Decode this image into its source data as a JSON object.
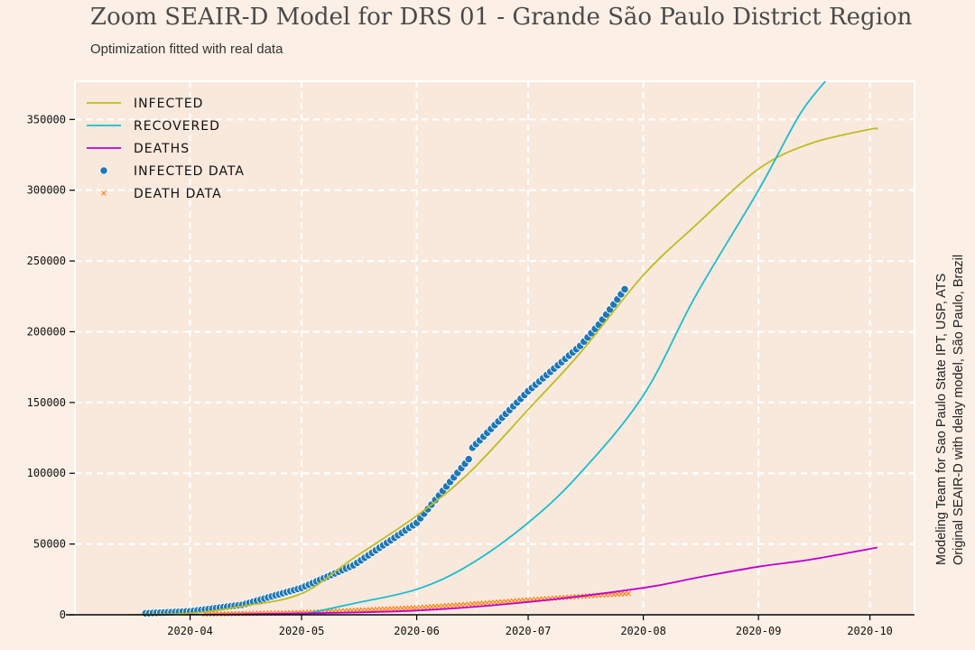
{
  "page": {
    "title": "Zoom SEAIR-D Model for DRS 01 - Grande São Paulo District Region",
    "subtitle": "Optimization fitted with real data"
  },
  "credits": [
    "Modeling Team for Sao Paulo State IPT, USP, ATS",
    "Original SEAIR-D with delay model, São Paulo, Brazil"
  ],
  "colors": {
    "background": "#fcefe5",
    "plot_background": "#f9e8dc",
    "grid": "#ffffff",
    "infected": "#bcbd22",
    "recovered": "#17becf",
    "deaths": "#c000d0",
    "infected_data": "#1f77b4",
    "death_data": "#ff7f0e"
  },
  "chart_data": {
    "type": "line",
    "title": "Zoom SEAIR-D Model for DRS 01 - Grande São Paulo District Region",
    "subtitle": "Optimization fitted with real data",
    "xlabel": "",
    "ylabel": "",
    "x_type": "date",
    "xlim": [
      "2020-03-01",
      "2020-10-13"
    ],
    "ylim": [
      0,
      377000
    ],
    "x_ticks": [
      "2020-04-01",
      "2020-05-01",
      "2020-06-01",
      "2020-07-01",
      "2020-08-01",
      "2020-09-01",
      "2020-10-01"
    ],
    "x_tick_labels": [
      "2020-04",
      "2020-05",
      "2020-06",
      "2020-07",
      "2020-08",
      "2020-09",
      "2020-10"
    ],
    "y_ticks": [
      0,
      50000,
      100000,
      150000,
      200000,
      250000,
      300000,
      350000
    ],
    "y_tick_labels": [
      "0",
      "50000",
      "100000",
      "150000",
      "200000",
      "250000",
      "300000",
      "350000"
    ],
    "grid": true,
    "legend_position": "top-left",
    "series": [
      {
        "name": "Infected",
        "kind": "line",
        "color": "#bcbd22",
        "points": [
          [
            "2020-03-15",
            0
          ],
          [
            "2020-04-01",
            1000
          ],
          [
            "2020-04-15",
            6000
          ],
          [
            "2020-05-01",
            15000
          ],
          [
            "2020-05-15",
            40000
          ],
          [
            "2020-06-01",
            70000
          ],
          [
            "2020-06-15",
            100000
          ],
          [
            "2020-07-01",
            145000
          ],
          [
            "2020-07-15",
            185000
          ],
          [
            "2020-08-01",
            240000
          ],
          [
            "2020-08-15",
            275000
          ],
          [
            "2020-09-01",
            315000
          ],
          [
            "2020-09-15",
            333000
          ],
          [
            "2020-10-01",
            343000
          ],
          [
            "2020-10-03",
            343000
          ]
        ]
      },
      {
        "name": "Recovered",
        "kind": "line",
        "color": "#17becf",
        "points": [
          [
            "2020-05-01",
            0
          ],
          [
            "2020-05-15",
            8000
          ],
          [
            "2020-06-01",
            18000
          ],
          [
            "2020-06-15",
            35000
          ],
          [
            "2020-07-01",
            65000
          ],
          [
            "2020-07-15",
            100000
          ],
          [
            "2020-08-01",
            155000
          ],
          [
            "2020-08-15",
            225000
          ],
          [
            "2020-09-01",
            300000
          ],
          [
            "2020-09-12",
            353000
          ],
          [
            "2020-09-19",
            377000
          ]
        ]
      },
      {
        "name": "Deaths",
        "kind": "line",
        "color": "#c000d0",
        "points": [
          [
            "2020-04-01",
            0
          ],
          [
            "2020-05-01",
            1000
          ],
          [
            "2020-06-01",
            3000
          ],
          [
            "2020-07-01",
            9000
          ],
          [
            "2020-08-01",
            19000
          ],
          [
            "2020-08-15",
            26000
          ],
          [
            "2020-09-01",
            34000
          ],
          [
            "2020-09-15",
            39000
          ],
          [
            "2020-10-03",
            47500
          ]
        ]
      },
      {
        "name": "Infected data",
        "kind": "scatter",
        "marker": "circle",
        "color": "#1f77b4",
        "points": [
          [
            "2020-03-20",
            1000
          ],
          [
            "2020-04-01",
            2500
          ],
          [
            "2020-04-15",
            7000
          ],
          [
            "2020-05-01",
            19000
          ],
          [
            "2020-05-15",
            35000
          ],
          [
            "2020-06-01",
            65000
          ],
          [
            "2020-06-15",
            110000
          ],
          [
            "2020-06-16",
            118000
          ],
          [
            "2020-07-01",
            158000
          ],
          [
            "2020-07-15",
            190000
          ],
          [
            "2020-07-20",
            205000
          ],
          [
            "2020-07-27",
            230000
          ]
        ]
      },
      {
        "name": "Death data",
        "kind": "scatter",
        "marker": "x",
        "color": "#ff7f0e",
        "points": [
          [
            "2020-04-05",
            500
          ],
          [
            "2020-05-01",
            1500
          ],
          [
            "2020-06-01",
            5000
          ],
          [
            "2020-06-15",
            7500
          ],
          [
            "2020-07-01",
            10500
          ],
          [
            "2020-07-15",
            13000
          ],
          [
            "2020-07-28",
            15000
          ]
        ]
      }
    ]
  }
}
